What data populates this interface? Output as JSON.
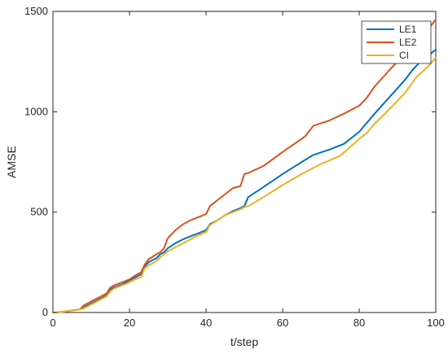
{
  "chart_data": {
    "type": "line",
    "title": "",
    "xlabel": "t/step",
    "ylabel": "AMSE",
    "xlim": [
      0,
      100
    ],
    "ylim": [
      0,
      1500
    ],
    "xticks": [
      0,
      20,
      40,
      60,
      80,
      100
    ],
    "yticks": [
      0,
      500,
      1000,
      1500
    ],
    "grid": false,
    "legend_position": "top-right",
    "series": [
      {
        "name": "LE1",
        "color": "#0072BD",
        "x": [
          0,
          1,
          3,
          5,
          7,
          8,
          10,
          12,
          14,
          15,
          16,
          18,
          20,
          22,
          23,
          24,
          25,
          27,
          28,
          29,
          30,
          32,
          34,
          36,
          38,
          40,
          41,
          43,
          45,
          47,
          49,
          50,
          51,
          55,
          60,
          65,
          68,
          72,
          76,
          80,
          82,
          84,
          88,
          92,
          94,
          96,
          98,
          100
        ],
        "y": [
          0,
          0,
          5,
          10,
          15,
          25,
          45,
          65,
          85,
          115,
          125,
          140,
          160,
          180,
          190,
          230,
          250,
          270,
          290,
          300,
          320,
          345,
          365,
          380,
          395,
          410,
          440,
          460,
          485,
          505,
          520,
          530,
          575,
          625,
          690,
          750,
          785,
          810,
          840,
          900,
          945,
          990,
          1075,
          1160,
          1210,
          1250,
          1280,
          1310
        ]
      },
      {
        "name": "LE2",
        "color": "#D95319",
        "x": [
          0,
          1,
          3,
          5,
          7,
          8,
          10,
          12,
          14,
          15,
          16,
          18,
          20,
          22,
          23,
          24,
          25,
          27,
          28,
          29,
          30,
          32,
          34,
          36,
          38,
          40,
          41,
          43,
          45,
          47,
          49,
          50,
          51,
          55,
          60,
          65,
          66,
          68,
          72,
          76,
          80,
          82,
          84,
          88,
          92,
          95,
          98,
          100
        ],
        "y": [
          0,
          0,
          5,
          10,
          15,
          35,
          55,
          75,
          95,
          125,
          135,
          150,
          165,
          190,
          200,
          240,
          265,
          290,
          300,
          320,
          370,
          410,
          440,
          460,
          475,
          490,
          530,
          560,
          590,
          620,
          630,
          690,
          695,
          730,
          800,
          865,
          880,
          930,
          955,
          990,
          1030,
          1070,
          1125,
          1210,
          1290,
          1350,
          1410,
          1460
        ]
      },
      {
        "name": "CI",
        "color": "#EDB120",
        "x": [
          0,
          1,
          3,
          5,
          7,
          8,
          10,
          12,
          14,
          15,
          16,
          18,
          20,
          22,
          23,
          24,
          25,
          27,
          28,
          29,
          30,
          32,
          34,
          36,
          38,
          40,
          41,
          43,
          45,
          47,
          49,
          50,
          51,
          55,
          60,
          65,
          70,
          75,
          80,
          82,
          84,
          88,
          92,
          95,
          98,
          100
        ],
        "y": [
          0,
          0,
          5,
          10,
          15,
          20,
          40,
          60,
          80,
          105,
          120,
          135,
          150,
          170,
          175,
          220,
          235,
          255,
          275,
          290,
          305,
          325,
          345,
          365,
          385,
          400,
          435,
          460,
          485,
          500,
          515,
          525,
          530,
          575,
          635,
          690,
          740,
          780,
          865,
          895,
          940,
          1015,
          1095,
          1175,
          1225,
          1270
        ]
      }
    ]
  }
}
